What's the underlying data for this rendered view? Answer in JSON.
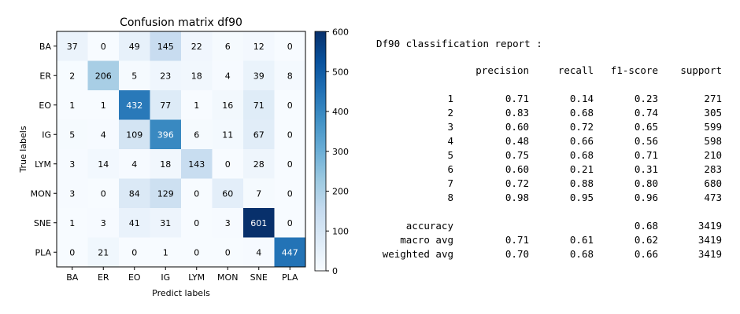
{
  "chart_data": {
    "type": "heatmap",
    "title": "Confusion matrix df90",
    "xlabel": "Predict labels",
    "ylabel": "True labels",
    "x_categories": [
      "BA",
      "ER",
      "EO",
      "IG",
      "LYM",
      "MON",
      "SNE",
      "PLA"
    ],
    "y_categories": [
      "BA",
      "ER",
      "EO",
      "IG",
      "LYM",
      "MON",
      "SNE",
      "PLA"
    ],
    "values": [
      [
        37,
        0,
        49,
        145,
        22,
        6,
        12,
        0
      ],
      [
        2,
        206,
        5,
        23,
        18,
        4,
        39,
        8
      ],
      [
        1,
        1,
        432,
        77,
        1,
        16,
        71,
        0
      ],
      [
        5,
        4,
        109,
        396,
        6,
        11,
        67,
        0
      ],
      [
        3,
        14,
        4,
        18,
        143,
        0,
        28,
        0
      ],
      [
        3,
        0,
        84,
        129,
        0,
        60,
        7,
        0
      ],
      [
        1,
        3,
        41,
        31,
        0,
        3,
        601,
        0
      ],
      [
        0,
        21,
        0,
        1,
        0,
        0,
        4,
        447
      ]
    ],
    "colormap": "Blues",
    "vmin": 0,
    "vmax": 601,
    "colorbar_ticks": [
      0,
      100,
      200,
      300,
      400,
      500,
      600
    ]
  },
  "report": {
    "title": "Df90 classification report :",
    "headers": [
      "precision",
      "recall",
      "f1-score",
      "support"
    ],
    "rows": [
      {
        "label": "1",
        "precision": "0.71",
        "recall": "0.14",
        "f1": "0.23",
        "support": "271"
      },
      {
        "label": "2",
        "precision": "0.83",
        "recall": "0.68",
        "f1": "0.74",
        "support": "305"
      },
      {
        "label": "3",
        "precision": "0.60",
        "recall": "0.72",
        "f1": "0.65",
        "support": "599"
      },
      {
        "label": "4",
        "precision": "0.48",
        "recall": "0.66",
        "f1": "0.56",
        "support": "598"
      },
      {
        "label": "5",
        "precision": "0.75",
        "recall": "0.68",
        "f1": "0.71",
        "support": "210"
      },
      {
        "label": "6",
        "precision": "0.60",
        "recall": "0.21",
        "f1": "0.31",
        "support": "283"
      },
      {
        "label": "7",
        "precision": "0.72",
        "recall": "0.88",
        "f1": "0.80",
        "support": "680"
      },
      {
        "label": "8",
        "precision": "0.98",
        "recall": "0.95",
        "f1": "0.96",
        "support": "473"
      }
    ],
    "summary": [
      {
        "label": "accuracy",
        "precision": "",
        "recall": "",
        "f1": "0.68",
        "support": "3419"
      },
      {
        "label": "macro avg",
        "precision": "0.71",
        "recall": "0.61",
        "f1": "0.62",
        "support": "3419"
      },
      {
        "label": "weighted avg",
        "precision": "0.70",
        "recall": "0.68",
        "f1": "0.66",
        "support": "3419"
      }
    ]
  }
}
